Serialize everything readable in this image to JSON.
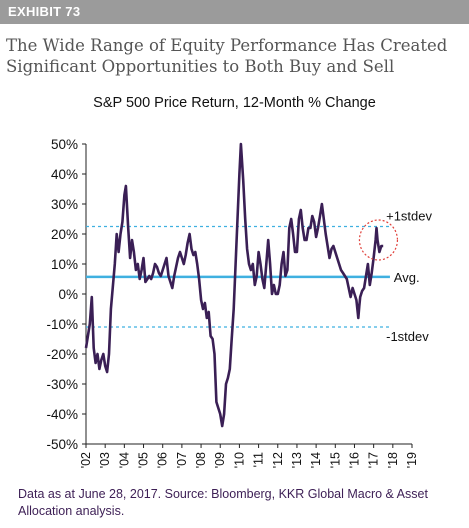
{
  "header": {
    "exhibit": "EXHIBIT 73",
    "headline_line1": "The Wide Range of Equity Performance Has Created",
    "headline_line2": "Significant Opportunities to Both Buy and Sell"
  },
  "footnote": {
    "line1": "Data as at June 28, 2017. Source: Bloomberg, KKR Global Macro & Asset",
    "line2": "Allocation analysis."
  },
  "colors": {
    "series": "#3a1f55",
    "avg_line": "#3fb0e0",
    "stdev_line": "#3fb0e0",
    "circle": "#e0403a",
    "header_bar": "#9b9b9b"
  },
  "chart_data": {
    "type": "line",
    "title": "S&P 500 Price Return, 12-Month % Change",
    "xlabel": "",
    "ylabel": "",
    "xlim": [
      2002,
      2019
    ],
    "ylim": [
      -50,
      50
    ],
    "y_ticks": [
      "50%",
      "40%",
      "30%",
      "20%",
      "10%",
      "0%",
      "-10%",
      "-20%",
      "-30%",
      "-40%",
      "-50%"
    ],
    "x_ticks": [
      "'02",
      "'03",
      "'04",
      "'05",
      "'06",
      "'07",
      "'08",
      "'09",
      "'10",
      "'11",
      "'12",
      "'13",
      "'14",
      "'15",
      "'16",
      "'17",
      "'18",
      "'19"
    ],
    "reference_lines": [
      {
        "label": "+1stdev",
        "value": 22.5,
        "style": "dashed"
      },
      {
        "label": "Avg.",
        "value": 5.7,
        "style": "solid"
      },
      {
        "label": "-1stdev",
        "value": -11,
        "style": "dashed"
      }
    ],
    "annotation": {
      "type": "circle",
      "x": 2017.25,
      "y": 18
    },
    "series": [
      {
        "values": [
          [
            2002.0,
            -18
          ],
          [
            2002.1,
            -14
          ],
          [
            2002.2,
            -10
          ],
          [
            2002.3,
            -1
          ],
          [
            2002.4,
            -18
          ],
          [
            2002.5,
            -23
          ],
          [
            2002.6,
            -20
          ],
          [
            2002.7,
            -25
          ],
          [
            2002.8,
            -22
          ],
          [
            2002.9,
            -20
          ],
          [
            2003.0,
            -24
          ],
          [
            2003.1,
            -26
          ],
          [
            2003.2,
            -20
          ],
          [
            2003.3,
            -5
          ],
          [
            2003.5,
            10
          ],
          [
            2003.6,
            20
          ],
          [
            2003.7,
            14
          ],
          [
            2003.8,
            20
          ],
          [
            2003.9,
            24
          ],
          [
            2004.0,
            33
          ],
          [
            2004.08,
            36
          ],
          [
            2004.2,
            22
          ],
          [
            2004.3,
            12
          ],
          [
            2004.4,
            18
          ],
          [
            2004.5,
            14
          ],
          [
            2004.6,
            8
          ],
          [
            2004.7,
            10
          ],
          [
            2004.8,
            5
          ],
          [
            2004.9,
            8
          ],
          [
            2005.0,
            12
          ],
          [
            2005.1,
            4
          ],
          [
            2005.2,
            5
          ],
          [
            2005.3,
            6
          ],
          [
            2005.4,
            5
          ],
          [
            2005.5,
            7
          ],
          [
            2005.6,
            10
          ],
          [
            2005.7,
            9
          ],
          [
            2005.8,
            7
          ],
          [
            2005.9,
            6
          ],
          [
            2006.0,
            8
          ],
          [
            2006.1,
            10
          ],
          [
            2006.2,
            12
          ],
          [
            2006.3,
            6
          ],
          [
            2006.4,
            4
          ],
          [
            2006.5,
            2
          ],
          [
            2006.6,
            6
          ],
          [
            2006.7,
            9
          ],
          [
            2006.8,
            12
          ],
          [
            2006.9,
            14
          ],
          [
            2007.0,
            12
          ],
          [
            2007.1,
            10
          ],
          [
            2007.2,
            13
          ],
          [
            2007.3,
            17
          ],
          [
            2007.4,
            20
          ],
          [
            2007.5,
            15
          ],
          [
            2007.6,
            13
          ],
          [
            2007.7,
            14
          ],
          [
            2007.8,
            10
          ],
          [
            2007.9,
            5
          ],
          [
            2008.0,
            -2
          ],
          [
            2008.1,
            -5
          ],
          [
            2008.2,
            -3
          ],
          [
            2008.3,
            -8
          ],
          [
            2008.4,
            -6
          ],
          [
            2008.5,
            -14
          ],
          [
            2008.6,
            -15
          ],
          [
            2008.7,
            -20
          ],
          [
            2008.8,
            -36
          ],
          [
            2008.9,
            -38
          ],
          [
            2009.0,
            -40
          ],
          [
            2009.1,
            -44
          ],
          [
            2009.2,
            -40
          ],
          [
            2009.3,
            -30
          ],
          [
            2009.4,
            -28
          ],
          [
            2009.5,
            -25
          ],
          [
            2009.6,
            -15
          ],
          [
            2009.7,
            -5
          ],
          [
            2009.8,
            10
          ],
          [
            2009.9,
            25
          ],
          [
            2010.0,
            40
          ],
          [
            2010.08,
            50
          ],
          [
            2010.2,
            38
          ],
          [
            2010.3,
            25
          ],
          [
            2010.4,
            15
          ],
          [
            2010.5,
            10
          ],
          [
            2010.6,
            8
          ],
          [
            2010.7,
            10
          ],
          [
            2010.8,
            3
          ],
          [
            2010.9,
            6
          ],
          [
            2011.0,
            14
          ],
          [
            2011.1,
            10
          ],
          [
            2011.2,
            5
          ],
          [
            2011.3,
            2
          ],
          [
            2011.4,
            10
          ],
          [
            2011.5,
            18
          ],
          [
            2011.6,
            10
          ],
          [
            2011.7,
            0
          ],
          [
            2011.8,
            3
          ],
          [
            2011.9,
            0
          ],
          [
            2012.0,
            0
          ],
          [
            2012.1,
            3
          ],
          [
            2012.2,
            10
          ],
          [
            2012.3,
            14
          ],
          [
            2012.4,
            6
          ],
          [
            2012.5,
            8
          ],
          [
            2012.6,
            22
          ],
          [
            2012.7,
            25
          ],
          [
            2012.8,
            20
          ],
          [
            2012.9,
            14
          ],
          [
            2013.0,
            14
          ],
          [
            2013.1,
            25
          ],
          [
            2013.2,
            28
          ],
          [
            2013.3,
            22
          ],
          [
            2013.4,
            18
          ],
          [
            2013.5,
            18
          ],
          [
            2013.6,
            22
          ],
          [
            2013.7,
            22
          ],
          [
            2013.8,
            26
          ],
          [
            2013.9,
            24
          ],
          [
            2014.0,
            19
          ],
          [
            2014.1,
            22
          ],
          [
            2014.2,
            26
          ],
          [
            2014.3,
            30
          ],
          [
            2014.4,
            25
          ],
          [
            2014.5,
            20
          ],
          [
            2014.6,
            16
          ],
          [
            2014.7,
            12
          ],
          [
            2014.8,
            15
          ],
          [
            2014.9,
            16
          ],
          [
            2015.0,
            14
          ],
          [
            2015.1,
            12
          ],
          [
            2015.2,
            10
          ],
          [
            2015.3,
            8
          ],
          [
            2015.4,
            7
          ],
          [
            2015.5,
            6
          ],
          [
            2015.6,
            5
          ],
          [
            2015.7,
            2
          ],
          [
            2015.8,
            -1
          ],
          [
            2015.9,
            2
          ],
          [
            2016.0,
            0
          ],
          [
            2016.1,
            -2
          ],
          [
            2016.2,
            -8
          ],
          [
            2016.25,
            -4
          ],
          [
            2016.3,
            -1
          ],
          [
            2016.4,
            1
          ],
          [
            2016.5,
            2
          ],
          [
            2016.6,
            6
          ],
          [
            2016.7,
            10
          ],
          [
            2016.8,
            3
          ],
          [
            2016.9,
            7
          ],
          [
            2017.0,
            12
          ],
          [
            2017.1,
            18
          ],
          [
            2017.15,
            22
          ],
          [
            2017.2,
            18
          ],
          [
            2017.3,
            14
          ],
          [
            2017.4,
            16
          ],
          [
            2017.5,
            16
          ]
        ]
      }
    ]
  }
}
